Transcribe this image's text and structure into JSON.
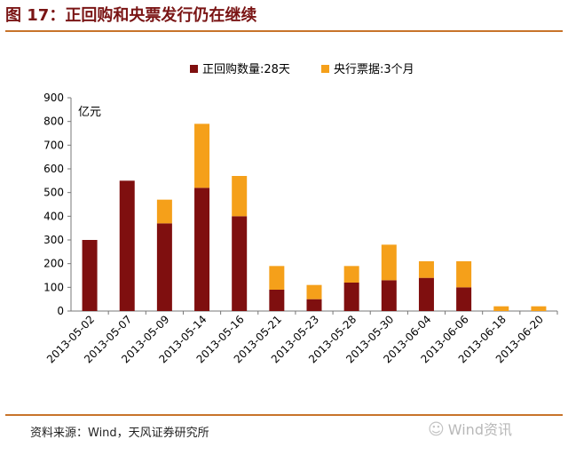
{
  "figure": {
    "title": "图 17：正回购和央票发行仍在继续",
    "source": "资料来源：Wind，天风证券研究所",
    "watermark": "Wind资讯",
    "watermark_icon": "wechat-icon"
  },
  "chart_data": {
    "type": "bar",
    "stacked": true,
    "title": "",
    "ylabel": "亿元",
    "xlabel": "",
    "ylim": [
      0,
      900
    ],
    "yticks": [
      0,
      100,
      200,
      300,
      400,
      500,
      600,
      700,
      800,
      900
    ],
    "grid": false,
    "legend": "top-center",
    "categories": [
      "2013-05-02",
      "2013-05-07",
      "2013-05-09",
      "2013-05-14",
      "2013-05-16",
      "2013-05-21",
      "2013-05-23",
      "2013-05-28",
      "2013-05-30",
      "2013-06-04",
      "2013-06-06",
      "2013-06-18",
      "2013-06-20"
    ],
    "series": [
      {
        "name": "正回购数量:28天",
        "color": "#7f0f0f",
        "values": [
          300,
          550,
          370,
          520,
          400,
          90,
          50,
          120,
          130,
          140,
          100,
          0,
          0
        ]
      },
      {
        "name": "央行票据:3个月",
        "color": "#f5a01a",
        "values": [
          0,
          0,
          100,
          270,
          170,
          100,
          60,
          70,
          150,
          70,
          110,
          20,
          20
        ]
      }
    ]
  }
}
